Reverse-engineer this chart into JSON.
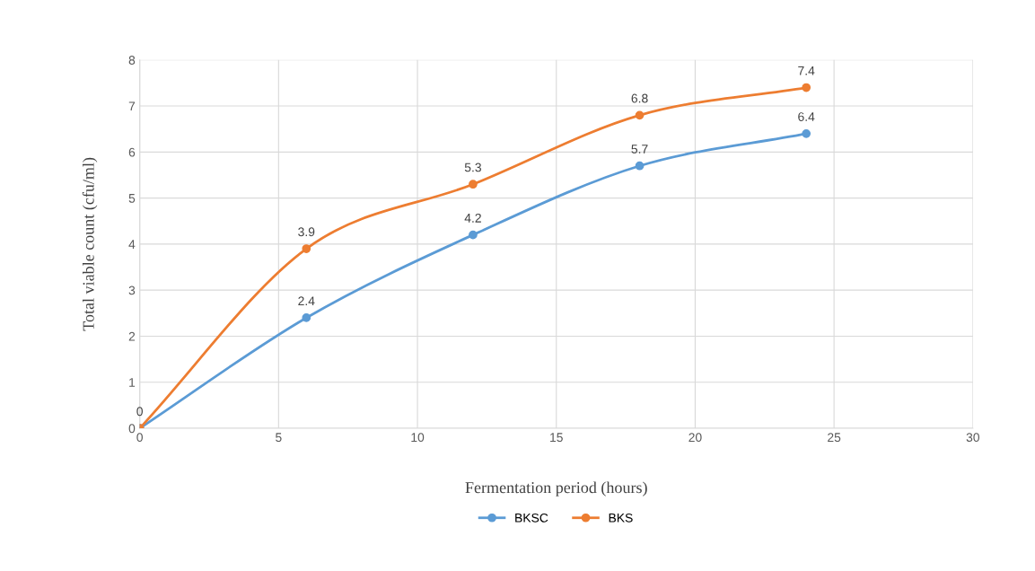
{
  "chart_data": {
    "type": "line",
    "xlabel": "Fermentation period (hours)",
    "ylabel": "Total viable count (cfu/ml)",
    "x": [
      0,
      6,
      12,
      18,
      24
    ],
    "series": [
      {
        "name": "BKSC",
        "color": "#5b9bd5",
        "values": [
          0,
          2.4,
          4.2,
          5.7,
          6.4
        ],
        "value_labels": [
          "0",
          "2.4",
          "4.2",
          "5.7",
          "6.4"
        ]
      },
      {
        "name": "BKS",
        "color": "#ed7d31",
        "values": [
          0,
          3.9,
          5.3,
          6.8,
          7.4
        ],
        "value_labels": [
          null,
          "3.9",
          "5.3",
          "6.8",
          "7.4"
        ]
      }
    ],
    "xlim": [
      0,
      30
    ],
    "xticks": [
      0,
      5,
      10,
      15,
      20,
      25,
      30
    ],
    "ylim": [
      0,
      8
    ],
    "yticks": [
      0,
      1,
      2,
      3,
      4,
      5,
      6,
      7,
      8
    ],
    "grid": true,
    "legend": "bottom",
    "marker": "circle",
    "line_style": "solid"
  }
}
